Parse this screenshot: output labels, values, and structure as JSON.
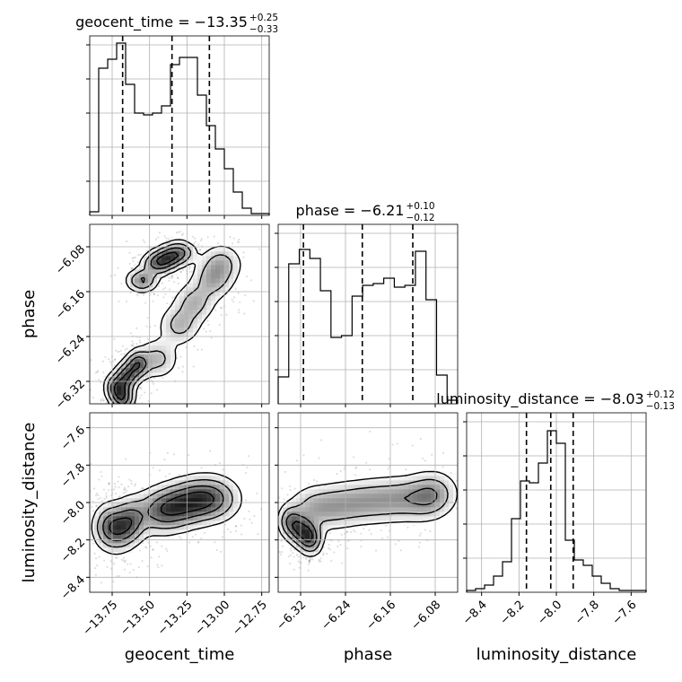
{
  "chart_data": {
    "type": "corner",
    "parameters": [
      {
        "name": "geocent_time",
        "label": "geocent_time",
        "range": [
          -13.9,
          -12.7
        ],
        "ticks": [
          -13.75,
          -13.5,
          -13.25,
          -13.0,
          -12.75
        ],
        "tick_labels": [
          "−13.75",
          "−13.50",
          "−13.25",
          "−13.00",
          "−12.75"
        ],
        "title": {
          "text": "geocent_time = −13.35",
          "upper": "+0.25",
          "lower": "−0.33"
        },
        "quantiles": [
          -13.68,
          -13.35,
          -13.1
        ],
        "hist": [
          0.02,
          0.82,
          0.87,
          0.96,
          0.73,
          0.57,
          0.56,
          0.57,
          0.61,
          0.84,
          0.88,
          0.88,
          0.67,
          0.5,
          0.37,
          0.26,
          0.13,
          0.04,
          0.01,
          0.01
        ]
      },
      {
        "name": "phase",
        "label": "phase",
        "range": [
          -6.36,
          -6.04
        ],
        "ticks": [
          -6.32,
          -6.24,
          -6.16,
          -6.08
        ],
        "tick_labels": [
          "−6.32",
          "−6.24",
          "−6.16",
          "−6.08"
        ],
        "title": {
          "text": "phase = −6.21",
          "upper": "+0.10",
          "lower": "−0.12"
        },
        "quantiles": [
          -6.315,
          -6.21,
          -6.12
        ],
        "hist": [
          0.15,
          0.78,
          0.86,
          0.81,
          0.63,
          0.37,
          0.38,
          0.6,
          0.66,
          0.67,
          0.7,
          0.65,
          0.66,
          0.85,
          0.58,
          0.16,
          0.02
        ]
      },
      {
        "name": "luminosity_distance",
        "label": "luminosity_distance",
        "range": [
          -8.48,
          -7.52
        ],
        "ticks": [
          -8.4,
          -8.2,
          -8.0,
          -7.8,
          -7.6
        ],
        "tick_labels": [
          "−8.4",
          "−8.2",
          "−8.0",
          "−7.8",
          "−7.6"
        ],
        "title": {
          "text": "luminosity_distance = −8.03",
          "upper": "+0.12",
          "lower": "−0.13"
        },
        "quantiles": [
          -8.16,
          -8.03,
          -7.91
        ],
        "hist": [
          0.01,
          0.02,
          0.04,
          0.09,
          0.17,
          0.41,
          0.62,
          0.61,
          0.72,
          0.9,
          0.83,
          0.29,
          0.18,
          0.15,
          0.09,
          0.05,
          0.02,
          0.01,
          0.01,
          0.01
        ]
      }
    ],
    "pairs": [
      {
        "x": "geocent_time",
        "y": "phase",
        "modes": [
          {
            "points": [
              [
                -13.68,
                -6.35
              ],
              [
                -13.72,
                -6.33
              ],
              [
                -13.65,
                -6.31
              ],
              [
                -13.58,
                -6.29
              ]
            ],
            "w": 0.045,
            "h": 0.014,
            "weight": 1.0
          },
          {
            "points": [
              [
                -13.55,
                -6.14
              ],
              [
                -13.45,
                -6.11
              ],
              [
                -13.38,
                -6.1
              ],
              [
                -13.3,
                -6.09
              ]
            ],
            "w": 0.06,
            "h": 0.012,
            "weight": 0.85
          },
          {
            "points": [
              [
                -13.45,
                -6.28
              ],
              [
                -13.3,
                -6.22
              ],
              [
                -13.2,
                -6.18
              ],
              [
                -13.08,
                -6.14
              ],
              [
                -13.02,
                -6.11
              ]
            ],
            "w": 0.08,
            "h": 0.02,
            "weight": 0.55
          }
        ]
      },
      {
        "x": "geocent_time",
        "y": "luminosity_distance",
        "modes": [
          {
            "points": [
              [
                -13.78,
                -8.13
              ],
              [
                -13.7,
                -8.14
              ],
              [
                -13.62,
                -8.1
              ]
            ],
            "w": 0.06,
            "h": 0.07,
            "weight": 1.0
          },
          {
            "points": [
              [
                -13.45,
                -8.05
              ],
              [
                -13.35,
                -8.03
              ],
              [
                -13.25,
                -8.0
              ],
              [
                -13.15,
                -7.98
              ],
              [
                -13.05,
                -7.98
              ]
            ],
            "w": 0.1,
            "h": 0.07,
            "weight": 0.8
          }
        ]
      },
      {
        "x": "phase",
        "y": "luminosity_distance",
        "modes": [
          {
            "points": [
              [
                -6.34,
                -8.1
              ],
              [
                -6.325,
                -8.14
              ],
              [
                -6.31,
                -8.17
              ],
              [
                -6.3,
                -8.2
              ]
            ],
            "w": 0.012,
            "h": 0.05,
            "weight": 1.0
          },
          {
            "points": [
              [
                -6.3,
                -8.03
              ],
              [
                -6.26,
                -8.02
              ],
              [
                -6.22,
                -8.0
              ],
              [
                -6.18,
                -7.99
              ],
              [
                -6.14,
                -7.98
              ],
              [
                -6.1,
                -7.98
              ],
              [
                -6.08,
                -7.95
              ]
            ],
            "w": 0.025,
            "h": 0.07,
            "weight": 0.7
          }
        ]
      }
    ]
  }
}
